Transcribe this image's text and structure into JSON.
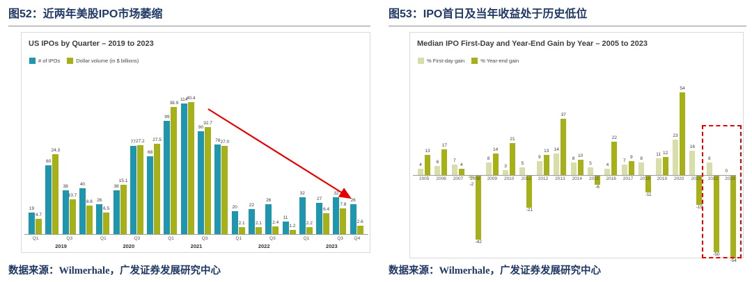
{
  "figures": {
    "left": {
      "caption": "图52：近两年美股IPO市场萎缩",
      "source": "数据来源：Wilmerhale，广发证券发展研究中心"
    },
    "right": {
      "caption": "图53：IPO首日及当年收益处于历史低位",
      "source": "数据来源：Wilmerhale，广发证券发展研究中心"
    }
  },
  "chart_data": [
    {
      "type": "bar",
      "title": "US IPOs by Quarter – 2019 to 2023",
      "legend": [
        {
          "label": "# of IPOs",
          "color": "#1E97AE"
        },
        {
          "label": "Dollar volume (in $ billions)",
          "color": "#A6B117"
        }
      ],
      "years": [
        "2019",
        "2020",
        "2021",
        "2022",
        "2023"
      ],
      "quarter_tick_labels": [
        "Q1",
        "",
        "Q3",
        "",
        "Q1",
        "",
        "Q3",
        "",
        "Q1",
        "",
        "Q3",
        "",
        "Q1",
        "",
        "Q3",
        "",
        "Q1",
        "",
        "Q3",
        "Q4"
      ],
      "series": [
        {
          "name": "# of IPOs",
          "color": "#1E97AE",
          "axis_max": 120,
          "values": [
            19,
            60,
            38,
            40,
            26,
            38,
            77,
            68,
            99,
            114,
            90,
            78,
            20,
            22,
            26,
            11,
            32,
            27,
            32,
            26
          ]
        },
        {
          "name": "Dollar volume (in $ billions)",
          "color": "#A6B117",
          "axis_max": 42,
          "values": [
            "4.7",
            "24.3",
            "10.7",
            "8.6",
            "6.5",
            "15.1",
            "27.2",
            "27.5",
            "38.9",
            "40.4",
            "32.7",
            "27.0",
            "2.1",
            "2.1",
            "2.4",
            "1.2",
            "2.2",
            "6.4",
            "7.8",
            "2.6"
          ]
        }
      ],
      "annotation": {
        "type": "arrow",
        "color": "#E60000",
        "meaning": "decline from 2021 peak to 2023"
      }
    },
    {
      "type": "bar",
      "title": "Median IPO First-Day and Year-End Gain by Year – 2005 to 2023",
      "legend": [
        {
          "label": "% First-day gain",
          "color": "#D9DDA9"
        },
        {
          "label": "% Year-end gain",
          "color": "#A6B117"
        }
      ],
      "categories": [
        "2005",
        "2006",
        "2007",
        "2008",
        "2009",
        "2010",
        "2011",
        "2012",
        "2013",
        "2014",
        "2015",
        "2016",
        "2017",
        "2018",
        "2019",
        "2020",
        "2021",
        "2022",
        "2023"
      ],
      "series": [
        {
          "name": "% First-day gain",
          "color": "#D9DDA9",
          "values": [
            4,
            6,
            7,
            -2,
            8,
            3,
            5,
            9,
            14,
            8,
            5,
            4,
            7,
            8,
            11,
            23,
            16,
            8,
            0
          ]
        },
        {
          "name": "% Year-end gain",
          "color": "#A6B117",
          "values": [
            13,
            17,
            4,
            -42,
            14,
            21,
            -21,
            13,
            37,
            10,
            -6,
            22,
            9,
            -11,
            12,
            54,
            -19,
            -50,
            -54
          ]
        }
      ],
      "ylim": [
        -60,
        60
      ],
      "highlight": {
        "type": "dashed-box",
        "color": "#E60000",
        "range": [
          "2022",
          "2023"
        ]
      }
    }
  ]
}
